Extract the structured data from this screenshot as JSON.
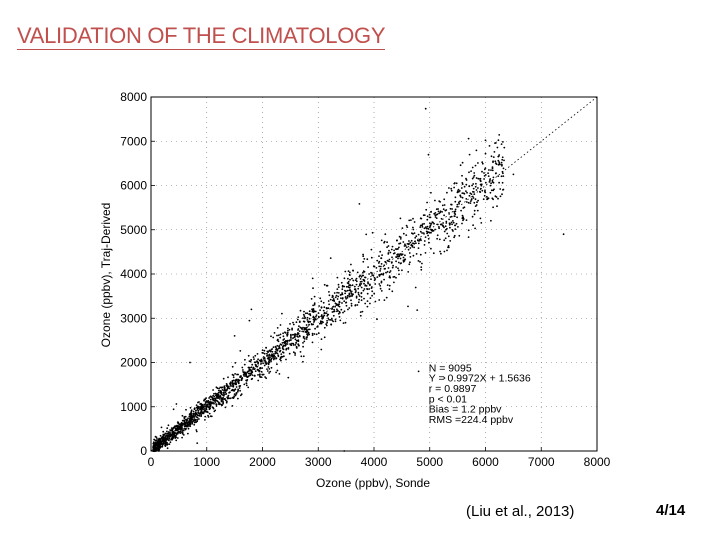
{
  "slide": {
    "title": "VALIDATION OF THE CLIMATOLOGY",
    "citation": "(Liu et al., 2013)",
    "page_number": "4/14"
  },
  "chart_data": {
    "type": "scatter",
    "xlabel": "Ozone (ppbv), Sonde",
    "ylabel": "Ozone (ppbv), Traj-Derived",
    "xlim": [
      0,
      8000
    ],
    "ylim": [
      0,
      8000
    ],
    "xticks": [
      "0",
      "1000",
      "2000",
      "3000",
      "4000",
      "5000",
      "6000",
      "7000",
      "8000"
    ],
    "yticks": [
      "0",
      "1000",
      "2000",
      "3000",
      "4000",
      "5000",
      "6000",
      "7000",
      "8000"
    ],
    "grid": "dotted",
    "reference_line": {
      "style": "dotted",
      "from": [
        0,
        0
      ],
      "to": [
        8000,
        8000
      ]
    },
    "stats": [
      "N = 9095",
      "Y = 0.9972X + 1.5636",
      "r = 0.9897",
      "p < 0.01",
      "Bias = 1.2 ppbv",
      "RMS =224.4 ppbv"
    ],
    "point_color": "#000000",
    "n_points_drawn": 2200,
    "points": [
      [
        250,
        240
      ],
      [
        480,
        520
      ],
      [
        760,
        700
      ],
      [
        1020,
        1100
      ],
      [
        1350,
        1290
      ],
      [
        1680,
        1750
      ],
      [
        2050,
        1990
      ],
      [
        2400,
        2470
      ],
      [
        2800,
        2720
      ],
      [
        3150,
        3220
      ],
      [
        3500,
        3440
      ],
      [
        3850,
        3920
      ],
      [
        4200,
        4120
      ],
      [
        4600,
        4680
      ],
      [
        5000,
        4930
      ],
      [
        5400,
        5470
      ],
      [
        5750,
        5680
      ],
      [
        6100,
        6050
      ],
      [
        6500,
        6250
      ],
      [
        7400,
        4900
      ],
      [
        1800,
        3200
      ],
      [
        1500,
        2600
      ],
      [
        4800,
        1800
      ],
      [
        700,
        2000
      ],
      [
        2900,
        3900
      ]
    ]
  }
}
